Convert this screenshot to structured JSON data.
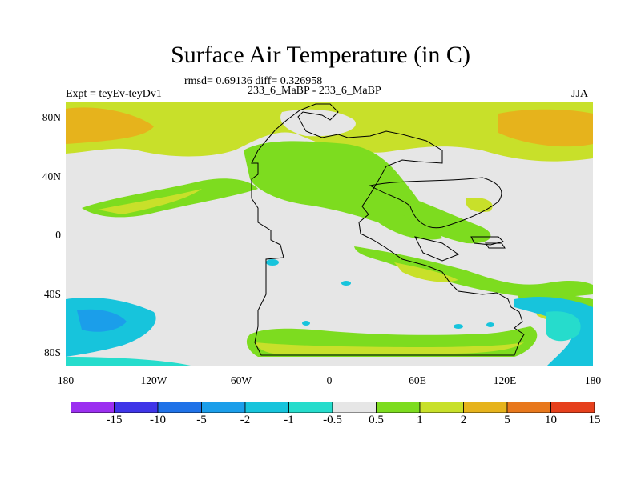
{
  "title": "Surface Air Temperature (in C)",
  "stats": "rmsd= 0.69136 diff= 0.326958",
  "expt": "Expt = teyEv-teyDv1",
  "comparison": "233_6_MaBP - 233_6_MaBP",
  "season": "JJA",
  "y_ticks": [
    "80N",
    "40N",
    "0",
    "40S",
    "80S"
  ],
  "x_ticks": [
    "180",
    "120W",
    "60W",
    "0",
    "60E",
    "120E",
    "180"
  ],
  "legend": {
    "labels": [
      "-15",
      "-10",
      "-5",
      "-2",
      "-1",
      "-0.5",
      "0.5",
      "1",
      "2",
      "5",
      "10",
      "15"
    ],
    "colors": [
      "#9b2ff0",
      "#3f35e8",
      "#1f72e8",
      "#1b9eea",
      "#17c4dc",
      "#26dccc",
      "#e6e6e6",
      "#7ddc1f",
      "#c8e02a",
      "#e6b31c",
      "#e8781c",
      "#e6401c"
    ]
  },
  "colors": {
    "land_outline": "#000000",
    "background_field": "#e6e6e6"
  }
}
